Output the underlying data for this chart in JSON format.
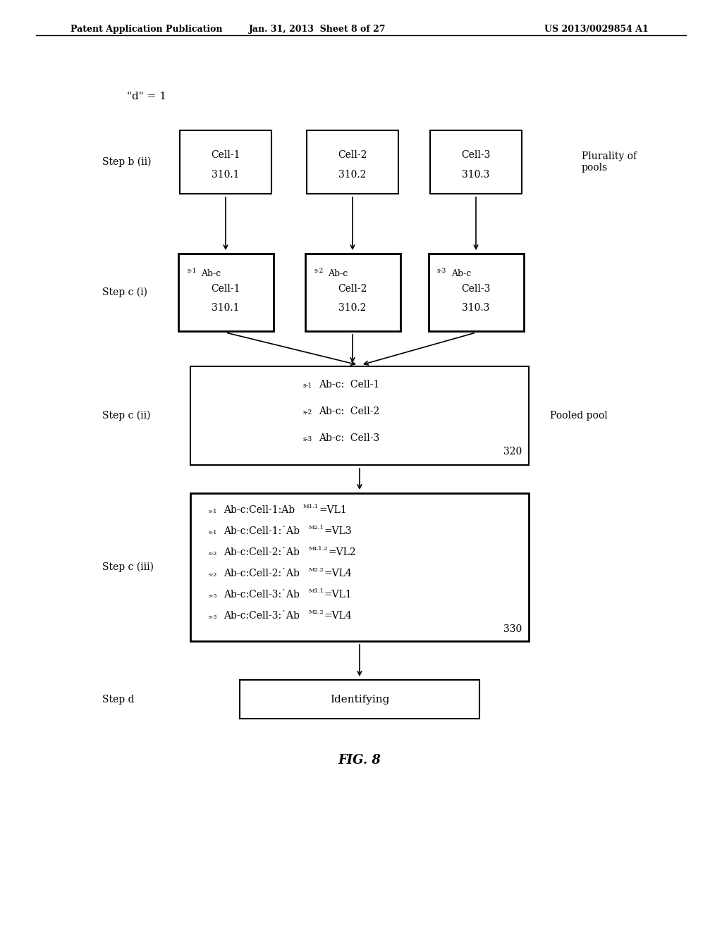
{
  "bg_color": "#ffffff",
  "header_left": "Patent Application Publication",
  "header_mid": "Jan. 31, 2013  Sheet 8 of 27",
  "header_right": "US 2013/0029854 A1",
  "d_label": "\"d\" = 1",
  "step_b_ii": "Step b (ii)",
  "step_c_i": "Step c (i)",
  "step_c_ii": "Step c (ii)",
  "step_c_iii": "Step c (iii)",
  "step_d": "Step d",
  "plurality_label": "Plurality of\npools",
  "pooled_pool_label": "Pooled pool",
  "box1_line1": "Cell-1",
  "box1_line2": "310.1",
  "box2_line1": "Cell-2",
  "box2_line2": "310.2",
  "box3_line1": "Cell-3",
  "box3_line2": "310.3",
  "box4_line1": "s-1Ab-c",
  "box4_line2": "Cell-1",
  "box4_line3": "310.1",
  "box5_line1": "s-2Ab-c",
  "box5_line2": "Cell-2",
  "box5_line3": "310.2",
  "box6_line1": "s-3Ab-c",
  "box6_line2": "Cell-3",
  "box6_line3": "310.3",
  "box7_lines": [
    "s-1Ab-c:  Cell-1",
    "s-2Ab-c:  Cell-2",
    "s-3Ab-c:  Cell-3"
  ],
  "box7_ref": "320",
  "box8_lines": [
    "s-1Ab-c:Cell-1:AbM1.1=VL1",
    "s-1Ab-c:Cell-1:AbM2.1=VL3",
    "s-2Ab-c:Cell-2:AbML1.2=VL2",
    "s-2Ab-c:Cell-2:AbM2.2=VL4",
    "s-3Ab-c:Cell-3:AbM1.1=VL1",
    "s-3Ab-c:Cell-3:AbM2.2=VL4"
  ],
  "box8_ref": "330",
  "box9_text": "Identifying",
  "fig_label": "FIG. 8"
}
